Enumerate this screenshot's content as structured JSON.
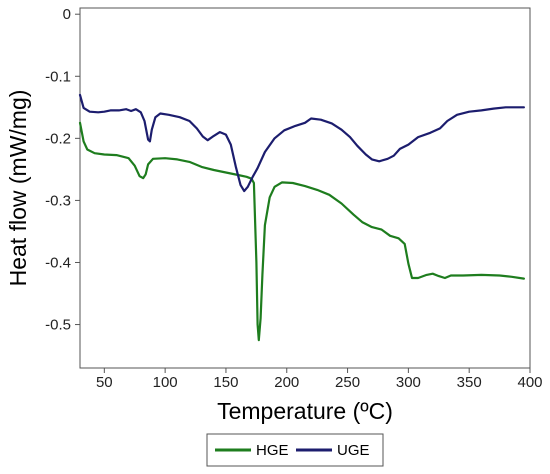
{
  "chart_data": {
    "type": "line",
    "xlabel": "Temperature (ºC)",
    "ylabel": "Heat flow (mW/mg)",
    "xlim": [
      30,
      400
    ],
    "ylim": [
      -0.57,
      0.01
    ],
    "xticks": [
      50,
      100,
      150,
      200,
      250,
      300,
      350,
      400
    ],
    "yticks": [
      0,
      -0.1,
      -0.2,
      -0.3,
      -0.4,
      -0.5
    ],
    "xtick_labels": [
      "50",
      "100",
      "150",
      "200",
      "250",
      "300",
      "350",
      "400"
    ],
    "ytick_labels": [
      "0",
      "-0.1",
      "-0.2",
      "-0.3",
      "-0.4",
      "-0.5"
    ],
    "grid": false,
    "legend_position": "bottom-center",
    "series": [
      {
        "name": "HGE",
        "color": "#1e7d1e",
        "points": [
          [
            30,
            -0.175
          ],
          [
            33,
            -0.205
          ],
          [
            36,
            -0.218
          ],
          [
            42,
            -0.224
          ],
          [
            50,
            -0.226
          ],
          [
            60,
            -0.227
          ],
          [
            70,
            -0.232
          ],
          [
            75,
            -0.244
          ],
          [
            79,
            -0.261
          ],
          [
            82,
            -0.264
          ],
          [
            84,
            -0.258
          ],
          [
            86,
            -0.242
          ],
          [
            90,
            -0.233
          ],
          [
            100,
            -0.232
          ],
          [
            110,
            -0.234
          ],
          [
            120,
            -0.238
          ],
          [
            130,
            -0.246
          ],
          [
            140,
            -0.251
          ],
          [
            150,
            -0.255
          ],
          [
            160,
            -0.259
          ],
          [
            167,
            -0.262
          ],
          [
            171,
            -0.265
          ],
          [
            173,
            -0.272
          ],
          [
            175,
            -0.4
          ],
          [
            176,
            -0.5
          ],
          [
            177,
            -0.525
          ],
          [
            178.5,
            -0.49
          ],
          [
            180,
            -0.42
          ],
          [
            182,
            -0.34
          ],
          [
            186,
            -0.295
          ],
          [
            190,
            -0.278
          ],
          [
            196,
            -0.271
          ],
          [
            205,
            -0.272
          ],
          [
            215,
            -0.277
          ],
          [
            225,
            -0.283
          ],
          [
            235,
            -0.291
          ],
          [
            245,
            -0.305
          ],
          [
            255,
            -0.323
          ],
          [
            262,
            -0.335
          ],
          [
            270,
            -0.343
          ],
          [
            278,
            -0.347
          ],
          [
            285,
            -0.357
          ],
          [
            292,
            -0.361
          ],
          [
            297,
            -0.37
          ],
          [
            300,
            -0.402
          ],
          [
            303,
            -0.425
          ],
          [
            308,
            -0.425
          ],
          [
            315,
            -0.42
          ],
          [
            320,
            -0.418
          ],
          [
            325,
            -0.422
          ],
          [
            330,
            -0.425
          ],
          [
            335,
            -0.421
          ],
          [
            345,
            -0.421
          ],
          [
            360,
            -0.42
          ],
          [
            375,
            -0.421
          ],
          [
            385,
            -0.423
          ],
          [
            395,
            -0.426
          ]
        ]
      },
      {
        "name": "UGE",
        "color": "#1c1d6e",
        "points": [
          [
            30,
            -0.13
          ],
          [
            33,
            -0.151
          ],
          [
            38,
            -0.157
          ],
          [
            45,
            -0.158
          ],
          [
            50,
            -0.157
          ],
          [
            55,
            -0.155
          ],
          [
            62,
            -0.155
          ],
          [
            68,
            -0.153
          ],
          [
            72,
            -0.156
          ],
          [
            76,
            -0.153
          ],
          [
            80,
            -0.158
          ],
          [
            83,
            -0.172
          ],
          [
            86,
            -0.202
          ],
          [
            87.5,
            -0.205
          ],
          [
            89,
            -0.186
          ],
          [
            92,
            -0.166
          ],
          [
            96,
            -0.16
          ],
          [
            103,
            -0.162
          ],
          [
            112,
            -0.166
          ],
          [
            120,
            -0.172
          ],
          [
            126,
            -0.184
          ],
          [
            131,
            -0.197
          ],
          [
            135,
            -0.203
          ],
          [
            140,
            -0.196
          ],
          [
            145,
            -0.19
          ],
          [
            150,
            -0.194
          ],
          [
            154,
            -0.21
          ],
          [
            158,
            -0.245
          ],
          [
            162,
            -0.275
          ],
          [
            165,
            -0.285
          ],
          [
            168,
            -0.278
          ],
          [
            172,
            -0.262
          ],
          [
            176,
            -0.248
          ],
          [
            182,
            -0.222
          ],
          [
            190,
            -0.2
          ],
          [
            198,
            -0.187
          ],
          [
            207,
            -0.18
          ],
          [
            215,
            -0.175
          ],
          [
            220,
            -0.168
          ],
          [
            228,
            -0.17
          ],
          [
            237,
            -0.176
          ],
          [
            245,
            -0.186
          ],
          [
            252,
            -0.198
          ],
          [
            258,
            -0.212
          ],
          [
            265,
            -0.226
          ],
          [
            270,
            -0.234
          ],
          [
            276,
            -0.237
          ],
          [
            283,
            -0.233
          ],
          [
            288,
            -0.228
          ],
          [
            293,
            -0.217
          ],
          [
            300,
            -0.21
          ],
          [
            308,
            -0.198
          ],
          [
            318,
            -0.191
          ],
          [
            326,
            -0.184
          ],
          [
            332,
            -0.172
          ],
          [
            340,
            -0.162
          ],
          [
            350,
            -0.157
          ],
          [
            360,
            -0.155
          ],
          [
            370,
            -0.152
          ],
          [
            380,
            -0.15
          ],
          [
            395,
            -0.15
          ]
        ]
      }
    ]
  }
}
